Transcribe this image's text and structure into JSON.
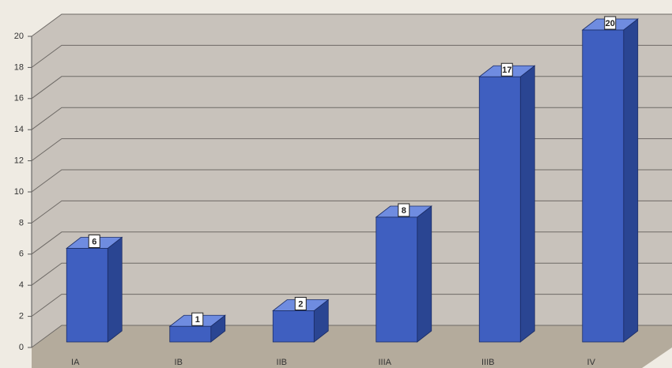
{
  "chart_data": {
    "type": "bar",
    "categories": [
      "IA",
      "IB",
      "IIB",
      "IIIA",
      "IIIB",
      "IV"
    ],
    "values": [
      6,
      1,
      2,
      8,
      17,
      20
    ],
    "color": "#3f5fc0",
    "ylim": [
      0,
      20
    ],
    "yticks": [
      0,
      2,
      4,
      6,
      8,
      10,
      12,
      14,
      16,
      18,
      20
    ],
    "grid": true
  }
}
